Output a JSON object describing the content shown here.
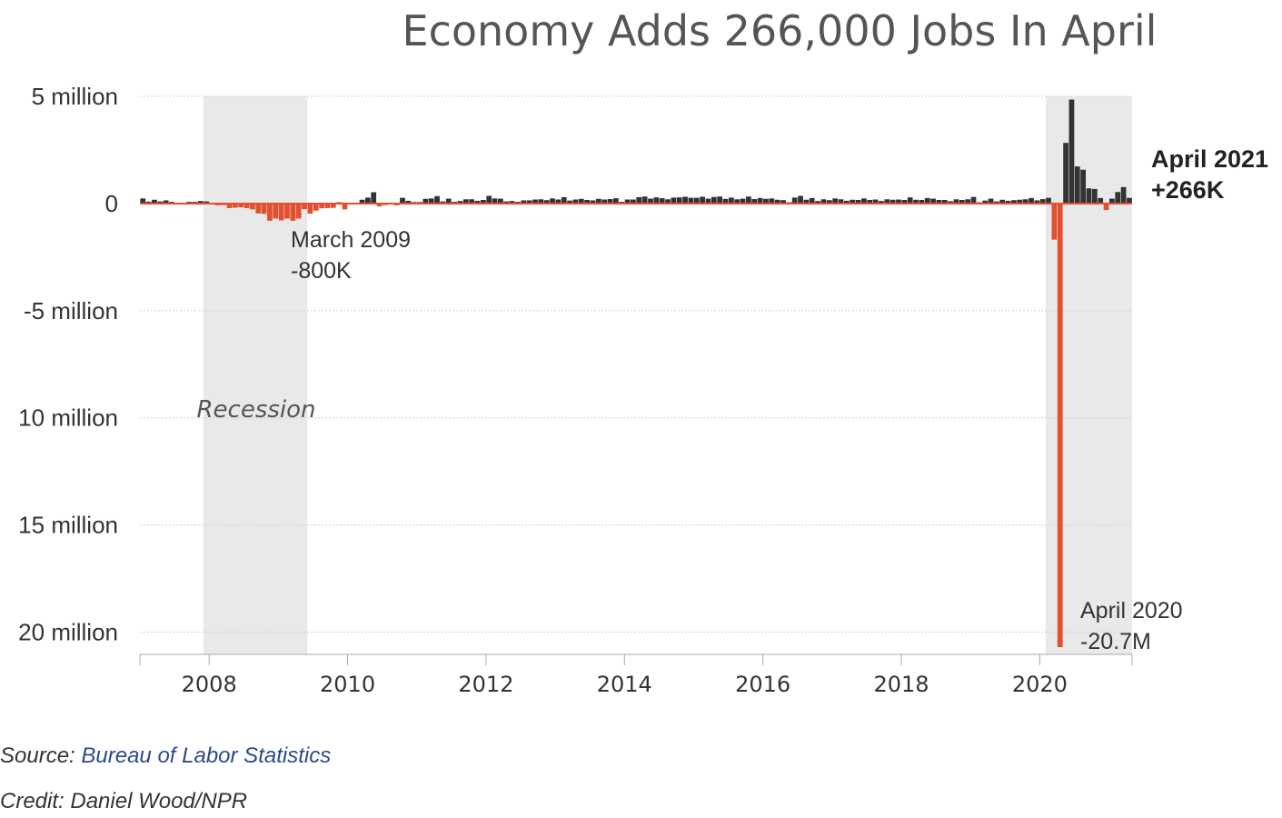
{
  "chart_data": {
    "type": "bar",
    "title": "Economy Adds 266,000 Jobs In April",
    "ylim": [
      -20.7,
      5
    ],
    "yticks": [
      {
        "value": 5,
        "label": "5 million"
      },
      {
        "value": 0,
        "label": "0"
      },
      {
        "value": -5,
        "label": "-5 million"
      },
      {
        "value": -10,
        "label": "10 million"
      },
      {
        "value": -15,
        "label": "15 million"
      },
      {
        "value": -20,
        "label": "20 million"
      }
    ],
    "xticks": [
      "2008",
      "2010",
      "2012",
      "2014",
      "2016",
      "2018",
      "2020"
    ],
    "start": "2007-01",
    "monthly_change_millions": [
      0.24,
      0.09,
      0.18,
      0.1,
      0.15,
      0.08,
      -0.03,
      -0.02,
      0.08,
      0.08,
      0.12,
      0.1,
      0.02,
      -0.08,
      -0.07,
      -0.21,
      -0.19,
      -0.17,
      -0.21,
      -0.27,
      -0.46,
      -0.48,
      -0.8,
      -0.7,
      -0.78,
      -0.7,
      -0.8,
      -0.7,
      -0.26,
      -0.47,
      -0.33,
      -0.22,
      -0.21,
      -0.2,
      0.06,
      -0.27,
      0.01,
      -0.03,
      0.18,
      0.28,
      0.53,
      -0.13,
      -0.07,
      -0.04,
      -0.08,
      0.27,
      0.13,
      0.07,
      0.07,
      0.22,
      0.24,
      0.35,
      0.1,
      0.23,
      0.08,
      0.12,
      0.2,
      0.2,
      0.13,
      0.17,
      0.36,
      0.24,
      0.23,
      0.1,
      0.12,
      0.08,
      0.15,
      0.15,
      0.19,
      0.2,
      0.16,
      0.24,
      0.19,
      0.3,
      0.14,
      0.19,
      0.22,
      0.17,
      0.15,
      0.22,
      0.19,
      0.21,
      0.25,
      0.08,
      0.19,
      0.19,
      0.3,
      0.33,
      0.23,
      0.29,
      0.25,
      0.2,
      0.28,
      0.29,
      0.32,
      0.27,
      0.27,
      0.32,
      0.23,
      0.31,
      0.33,
      0.22,
      0.28,
      0.2,
      0.23,
      0.33,
      0.21,
      0.26,
      0.22,
      0.24,
      0.18,
      0.16,
      0.06,
      0.28,
      0.36,
      0.18,
      0.26,
      0.12,
      0.2,
      0.16,
      0.24,
      0.2,
      0.13,
      0.18,
      0.17,
      0.24,
      0.17,
      0.19,
      0.12,
      0.2,
      0.18,
      0.19,
      0.17,
      0.29,
      0.18,
      0.17,
      0.26,
      0.23,
      0.17,
      0.17,
      0.11,
      0.2,
      0.17,
      0.2,
      0.31,
      0.06,
      0.14,
      0.23,
      0.1,
      0.18,
      0.13,
      0.16,
      0.18,
      0.2,
      0.26,
      0.15,
      0.21,
      0.27,
      -1.68,
      -20.7,
      2.83,
      4.85,
      1.73,
      1.58,
      0.71,
      0.68,
      0.26,
      -0.3,
      0.23,
      0.54,
      0.77,
      0.266
    ],
    "recession_start": "2007-12",
    "recession_end": "2009-06",
    "pandemic_shade_start": "2020-02",
    "colors": {
      "positive": "#333333",
      "negative": "#e2502f",
      "recession": "#e9e9e9",
      "grid": "#cfcfcf",
      "zero_line": "#e2502f"
    },
    "recession_label": "Recession",
    "annotations": [
      {
        "id": "march2009",
        "line1": "March 2009",
        "line2": "-800K"
      },
      {
        "id": "april2020",
        "line1": "April 2020",
        "line2": "-20.7M"
      },
      {
        "id": "april2021",
        "line1": "April 2021",
        "line2": "+266K"
      }
    ]
  },
  "footer": {
    "source_prefix": "Source: ",
    "source_link": "Bureau of Labor Statistics",
    "credit": "Credit: Daniel Wood/NPR"
  }
}
